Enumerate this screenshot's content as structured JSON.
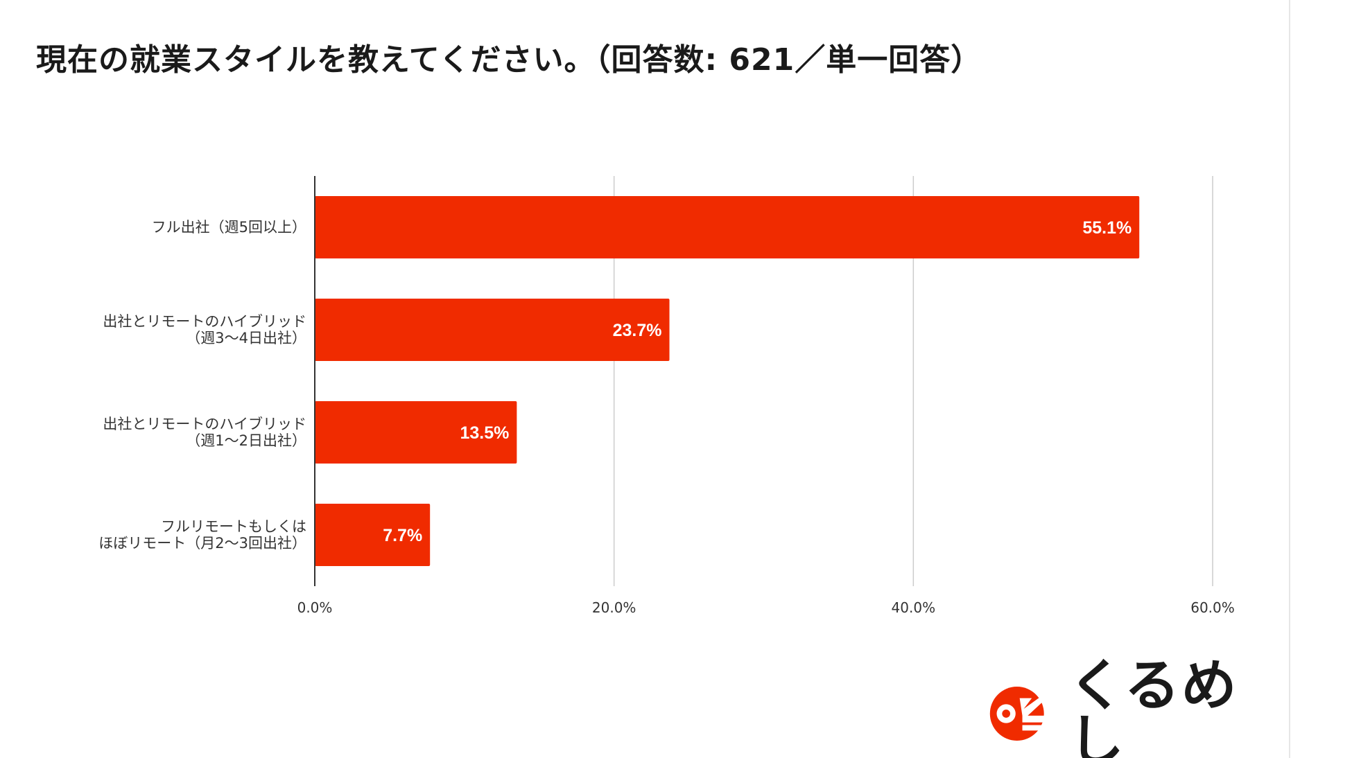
{
  "title": "現在の就業スタイルを教えてください。（回答数: 621／単一回答）",
  "brand": {
    "name": "くるめし",
    "accent": "#f02b00"
  },
  "chart_data": {
    "type": "bar",
    "orientation": "horizontal",
    "categories": [
      [
        "フル出社（週5回以上）"
      ],
      [
        "出社とリモートのハイブリッド",
        "（週3〜4日出社）"
      ],
      [
        "出社とリモートのハイブリッド",
        "（週1〜2日出社）"
      ],
      [
        "フルリモートもしくは",
        "ほぼリモート（月2〜3回出社）"
      ]
    ],
    "values": [
      55.1,
      23.7,
      13.5,
      7.7
    ],
    "value_labels": [
      "55.1%",
      "23.7%",
      "13.5%",
      "7.7%"
    ],
    "xlim": [
      0,
      60
    ],
    "xticks": [
      0,
      20,
      40,
      60
    ],
    "xtick_labels": [
      "0.0%",
      "20.0%",
      "40.0%",
      "60.0%"
    ],
    "grid": true,
    "bar_color": "#f02b00",
    "legend": "none"
  }
}
